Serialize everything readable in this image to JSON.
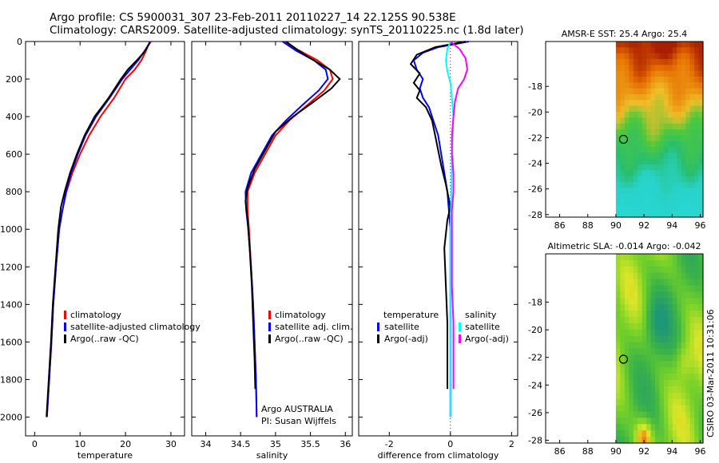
{
  "title_line1": "Argo profile: CS 5900031_307 23-Feb-2011 20110227_14 22.125S 90.538E",
  "title_line2": "Climatology: CARS2009. Satellite-adjusted climatology: synTS_20110225.nc (1.8d later)",
  "stamp": "CSIRO 03-Mar-2011 10:31:06",
  "colors": {
    "clim": "#ff0000",
    "sat": "#0000ff",
    "argo": "#000000",
    "cyan": "#00ffff",
    "magenta": "#ff00ff"
  },
  "chart_data": [
    {
      "type": "line",
      "id": "temperature",
      "xlabel": "temperature",
      "xlim": [
        -2,
        33
      ],
      "ylim": [
        2100,
        0
      ],
      "xticks": [
        "0",
        "10",
        "20",
        "30"
      ],
      "yticks": [
        "0",
        "200",
        "400",
        "600",
        "800",
        "1000",
        "1200",
        "1400",
        "1600",
        "1800",
        "2000"
      ],
      "legend": [
        "climatology",
        "satellite-adjusted climatology",
        "Argo(..raw -QC)"
      ],
      "series": [
        {
          "name": "climatology",
          "color": "clim",
          "points": [
            [
              25.6,
              0
            ],
            [
              25,
              20
            ],
            [
              24.5,
              50
            ],
            [
              23.5,
              100
            ],
            [
              22,
              150
            ],
            [
              20,
              200
            ],
            [
              17.5,
              300
            ],
            [
              14.5,
              400
            ],
            [
              12,
              500
            ],
            [
              10,
              600
            ],
            [
              8.3,
              700
            ],
            [
              7,
              800
            ],
            [
              6.1,
              900
            ],
            [
              5.4,
              1000
            ],
            [
              4.7,
              1200
            ],
            [
              4.1,
              1400
            ],
            [
              3.7,
              1600
            ],
            [
              3.2,
              1800
            ],
            [
              2.7,
              2000
            ]
          ]
        },
        {
          "name": "satellite-adjusted climatology",
          "color": "sat",
          "points": [
            [
              25.4,
              0
            ],
            [
              25,
              20
            ],
            [
              24.2,
              50
            ],
            [
              22.8,
              100
            ],
            [
              21,
              150
            ],
            [
              19.3,
              200
            ],
            [
              16.5,
              300
            ],
            [
              13.5,
              400
            ],
            [
              11.2,
              500
            ],
            [
              9.5,
              600
            ],
            [
              8,
              700
            ],
            [
              6.9,
              800
            ],
            [
              6.1,
              900
            ],
            [
              5.4,
              1000
            ],
            [
              4.7,
              1200
            ],
            [
              4.1,
              1400
            ],
            [
              3.7,
              1600
            ],
            [
              3.2,
              1800
            ],
            [
              2.7,
              2000
            ]
          ]
        },
        {
          "name": "Argo(..raw -QC)",
          "color": "argo",
          "points": [
            [
              25.4,
              5
            ],
            [
              24.8,
              30
            ],
            [
              24,
              60
            ],
            [
              22.5,
              100
            ],
            [
              20.5,
              150
            ],
            [
              19,
              200
            ],
            [
              16.3,
              300
            ],
            [
              13.2,
              400
            ],
            [
              11,
              500
            ],
            [
              9.3,
              600
            ],
            [
              7.8,
              700
            ],
            [
              6.6,
              800
            ],
            [
              5.8,
              880
            ],
            [
              5.2,
              1000
            ],
            [
              4.6,
              1200
            ],
            [
              4.0,
              1400
            ],
            [
              3.6,
              1600
            ],
            [
              3.1,
              1800
            ],
            [
              2.6,
              2000
            ]
          ]
        }
      ]
    },
    {
      "type": "line",
      "id": "salinity",
      "xlabel": "salinity",
      "xlim": [
        33.8,
        36.1
      ],
      "ylim": [
        2100,
        0
      ],
      "xticks": [
        "34",
        "34.5",
        "35",
        "35.5",
        "36"
      ],
      "legend": [
        "climatology",
        "satellite adj. clim.",
        "Argo(..raw -QC)"
      ],
      "annotation": [
        "Argo AUSTRALIA",
        "PI: Susan Wijffels"
      ],
      "series": [
        {
          "name": "climatology",
          "color": "clim",
          "points": [
            [
              35.1,
              0
            ],
            [
              35.35,
              50
            ],
            [
              35.6,
              100
            ],
            [
              35.78,
              150
            ],
            [
              35.82,
              200
            ],
            [
              35.7,
              260
            ],
            [
              35.45,
              340
            ],
            [
              35.2,
              420
            ],
            [
              35.0,
              500
            ],
            [
              34.85,
              600
            ],
            [
              34.7,
              700
            ],
            [
              34.6,
              800
            ],
            [
              34.6,
              900
            ],
            [
              34.62,
              1000
            ],
            [
              34.65,
              1200
            ],
            [
              34.68,
              1400
            ],
            [
              34.7,
              1600
            ],
            [
              34.72,
              1800
            ],
            [
              34.73,
              2000
            ]
          ]
        },
        {
          "name": "satellite adj. clim.",
          "color": "sat",
          "points": [
            [
              35.1,
              0
            ],
            [
              35.3,
              50
            ],
            [
              35.55,
              100
            ],
            [
              35.72,
              150
            ],
            [
              35.75,
              200
            ],
            [
              35.62,
              260
            ],
            [
              35.38,
              340
            ],
            [
              35.15,
              420
            ],
            [
              34.95,
              500
            ],
            [
              34.8,
              600
            ],
            [
              34.65,
              700
            ],
            [
              34.57,
              800
            ],
            [
              34.58,
              900
            ],
            [
              34.61,
              1000
            ],
            [
              34.65,
              1200
            ],
            [
              34.68,
              1400
            ],
            [
              34.7,
              1600
            ],
            [
              34.72,
              1800
            ],
            [
              34.73,
              2000
            ]
          ]
        },
        {
          "name": "Argo(..raw -QC)",
          "color": "argo",
          "points": [
            [
              35.15,
              0
            ],
            [
              35.3,
              40
            ],
            [
              35.5,
              90
            ],
            [
              35.78,
              150
            ],
            [
              35.92,
              200
            ],
            [
              35.8,
              250
            ],
            [
              35.55,
              320
            ],
            [
              35.25,
              400
            ],
            [
              35.0,
              480
            ],
            [
              34.85,
              580
            ],
            [
              34.7,
              680
            ],
            [
              34.6,
              780
            ],
            [
              34.57,
              850
            ],
            [
              34.6,
              950
            ],
            [
              34.63,
              1100
            ],
            [
              34.66,
              1300
            ],
            [
              34.68,
              1500
            ],
            [
              34.7,
              1700
            ],
            [
              34.71,
              1850
            ]
          ]
        }
      ]
    },
    {
      "type": "line",
      "id": "difference",
      "xlabel": "difference from climatology",
      "xlim": [
        -3,
        2.2
      ],
      "ylim": [
        2100,
        0
      ],
      "xticks": [
        "-2",
        "0",
        "2"
      ],
      "legend_left_header": "temperature",
      "legend_left": [
        "satellite",
        "Argo(-adj)"
      ],
      "legend_right_header": "salinity",
      "legend_right": [
        "satellite",
        "Argo(-adj)"
      ],
      "series": [
        {
          "name": "satellite",
          "color": "sat",
          "points": [
            [
              0.6,
              0
            ],
            [
              -0.4,
              30
            ],
            [
              -0.9,
              60
            ],
            [
              -1.2,
              100
            ],
            [
              -1.1,
              150
            ],
            [
              -0.9,
              200
            ],
            [
              -1.0,
              250
            ],
            [
              -0.9,
              300
            ],
            [
              -0.7,
              350
            ],
            [
              -0.6,
              400
            ],
            [
              -0.4,
              500
            ],
            [
              -0.3,
              600
            ],
            [
              -0.2,
              700
            ],
            [
              -0.1,
              800
            ],
            [
              0,
              1000
            ],
            [
              0,
              2000
            ]
          ]
        },
        {
          "name": "Argo(-adj)",
          "color": "argo",
          "points": [
            [
              0.5,
              0
            ],
            [
              -0.5,
              30
            ],
            [
              -1.1,
              70
            ],
            [
              -1.3,
              120
            ],
            [
              -1.0,
              170
            ],
            [
              -1.2,
              220
            ],
            [
              -1.0,
              260
            ],
            [
              -1.1,
              300
            ],
            [
              -0.8,
              350
            ],
            [
              -0.6,
              420
            ],
            [
              -0.5,
              500
            ],
            [
              -0.4,
              580
            ],
            [
              -0.3,
              660
            ],
            [
              -0.15,
              760
            ],
            [
              0,
              880
            ],
            [
              -0.1,
              950
            ],
            [
              -0.2,
              1100
            ],
            [
              -0.15,
              1300
            ],
            [
              -0.1,
              1500
            ],
            [
              -0.1,
              1800
            ],
            [
              -0.1,
              1850
            ]
          ]
        },
        {
          "name": "satellite",
          "color": "cyan",
          "points": [
            [
              0.0,
              0
            ],
            [
              -0.1,
              40
            ],
            [
              -0.15,
              100
            ],
            [
              -0.1,
              160
            ],
            [
              0.0,
              220
            ],
            [
              0.05,
              300
            ],
            [
              0.1,
              400
            ],
            [
              0.08,
              500
            ],
            [
              0.05,
              600
            ],
            [
              0.03,
              800
            ],
            [
              0,
              1000
            ],
            [
              0,
              2000
            ]
          ]
        },
        {
          "name": "Argo(-adj)",
          "color": "magenta",
          "points": [
            [
              0.0,
              0
            ],
            [
              0.3,
              40
            ],
            [
              0.5,
              90
            ],
            [
              0.55,
              150
            ],
            [
              0.45,
              200
            ],
            [
              0.25,
              250
            ],
            [
              0.15,
              320
            ],
            [
              0.1,
              400
            ],
            [
              0.05,
              500
            ],
            [
              0.05,
              600
            ],
            [
              0.1,
              700
            ],
            [
              0.1,
              800
            ],
            [
              0.05,
              900
            ],
            [
              0.05,
              1100
            ],
            [
              0.05,
              1300
            ],
            [
              0.1,
              1500
            ],
            [
              0.1,
              1700
            ],
            [
              0.1,
              1850
            ]
          ]
        }
      ]
    },
    {
      "type": "heatmap",
      "id": "sst",
      "title": "AMSR-E SST: 25.4  Argo: 25.4",
      "xlim": [
        85,
        96.2
      ],
      "ylim": [
        -28.2,
        -14.5
      ],
      "xticks": [
        "86",
        "88",
        "90",
        "92",
        "94",
        "96"
      ],
      "yticks": [
        "-18",
        "-20",
        "-22",
        "-24",
        "-26",
        "-28"
      ],
      "marker": [
        90.54,
        -22.13
      ]
    },
    {
      "type": "heatmap",
      "id": "sla",
      "title": "Altimetric SLA: -0.014  Argo: -0.042",
      "xlim": [
        85,
        96.2
      ],
      "ylim": [
        -28.2,
        -14.5
      ],
      "xticks": [
        "86",
        "88",
        "90",
        "92",
        "94",
        "96"
      ],
      "yticks": [
        "-18",
        "-20",
        "-22",
        "-24",
        "-26",
        "-28"
      ],
      "marker": [
        90.54,
        -22.13
      ]
    }
  ]
}
